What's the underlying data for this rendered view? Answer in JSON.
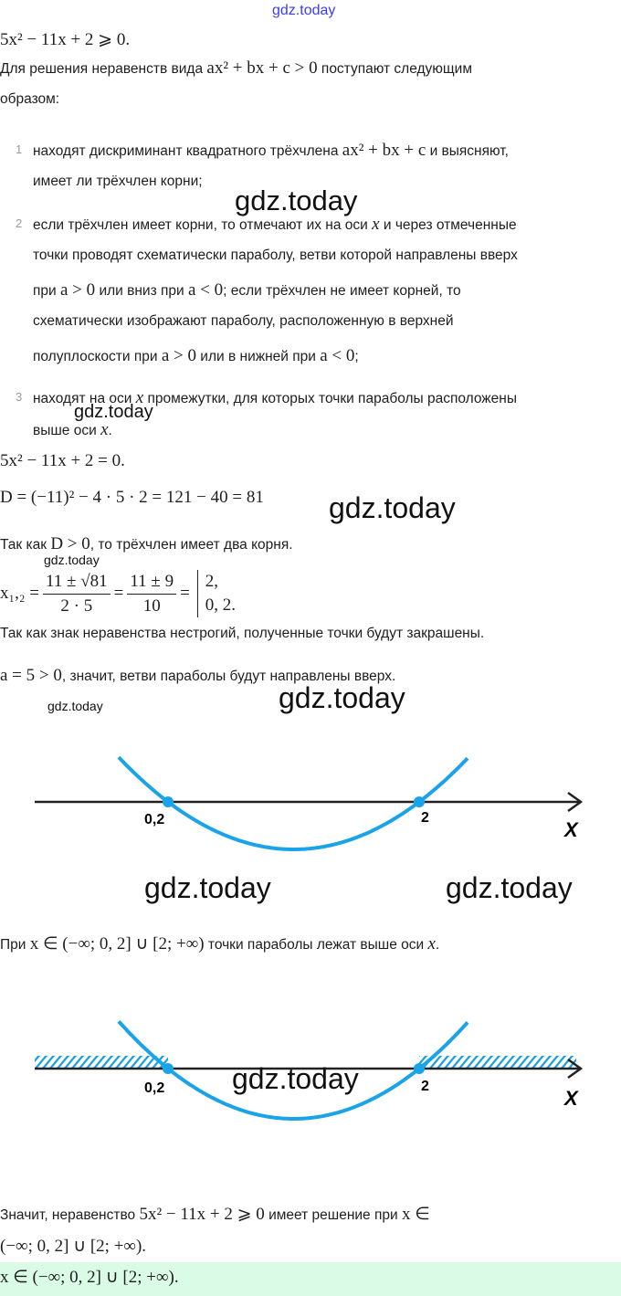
{
  "watermark": "gdz.today",
  "problem": "5x² − 11x + 2 ⩾ 0.",
  "intro": {
    "text1": "Для решения неравенств вида",
    "math": "ax² + bx + c > 0",
    "text2": "поступают следующим",
    "text3": "образом:"
  },
  "steps": [
    {
      "num": "1",
      "l1a": "находят дискриминант квадратного трёхчлена",
      "l1m": "ax² + bx + c",
      "l1b": "и выясняют,",
      "l2": "имеет ли трёхчлен корни;"
    },
    {
      "num": "2",
      "l1a": "если трёхчлен имеет корни, то отмечают их на оси",
      "l1m": "x",
      "l1b": "и через отмеченные",
      "l2": "точки проводят схематически параболу, ветви которой направлены вверх",
      "l3a": "при",
      "l3m1": "a > 0",
      "l3b": "или вниз при",
      "l3m2": "a < 0",
      "l3c": "; если трёхчлен не имеет корней, то",
      "l4": "схематически изображают параболу, расположенную в верхней",
      "l5a": "полуплоскости при",
      "l5m1": "a > 0",
      "l5b": "или в нижней при",
      "l5m2": "a < 0",
      "l5c": ";"
    },
    {
      "num": "3",
      "l1a": "находят на оси",
      "l1m": "x",
      "l1b": "промежутки, для которых точки параболы расположены",
      "l2a": "выше оси",
      "l2m": "x",
      "l2b": "."
    }
  ],
  "equation": "5x² − 11x + 2 = 0.",
  "discriminant": "D = (−11)² − 4 · 5 · 2 = 121 − 40 = 81",
  "two_roots": {
    "a": "Так как",
    "m": "D > 0",
    "b": ", то трёхчлен имеет два корня."
  },
  "roots": {
    "lhs": "x₁,₂ =",
    "num1": "11 ± √81",
    "den1": "2 · 5",
    "eq": "=",
    "num2": "11 ± 9",
    "den2": "10",
    "eq2": "=",
    "r1": "2,",
    "r2": "0, 2."
  },
  "closed_points": "Так как знак неравенства нестрогий, полученные точки будут закрашены.",
  "branches": {
    "m": "a = 5 > 0",
    "t": ", значит, ветви параболы будут направлены вверх."
  },
  "graph": {
    "root1": "0,2",
    "root2": "2",
    "axis": "X",
    "curve_color": "#1aa3e8",
    "roots_values": [
      0.2,
      2
    ]
  },
  "interval_line": {
    "a": "При",
    "m": "x ∈ (−∞;  0, 2] ∪ [2;  +∞)",
    "b": "точки параболы лежат выше оси",
    "m2": "x",
    "c": "."
  },
  "conclusion": {
    "a": "Значит, неравенство",
    "m": "5x² − 11x + 2 ⩾ 0",
    "b": "имеет решение при",
    "m2": "x ∈",
    "l2": "(−∞;  0, 2] ∪ [2;  +∞)."
  },
  "answer": {
    "text": "x ∈ (−∞;  0, 2] ∪ [2;  +∞).",
    "bg": "#dafbe5"
  }
}
